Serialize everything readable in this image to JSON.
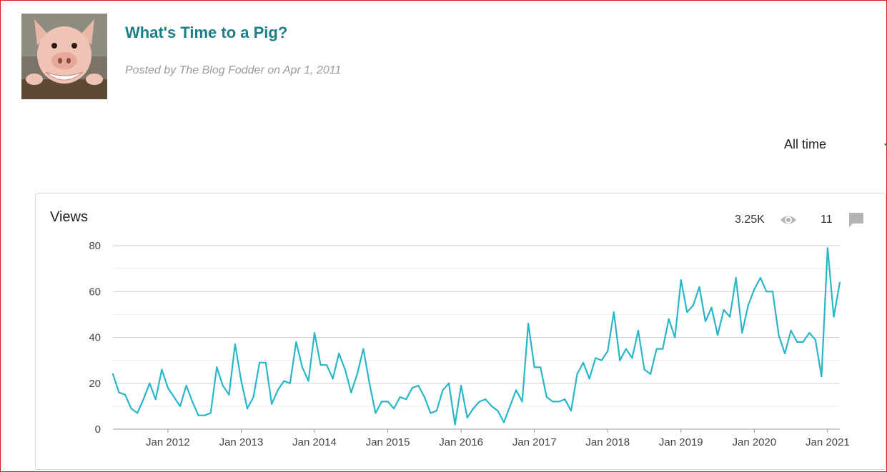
{
  "post": {
    "title": "What's Time to a Pig?",
    "meta": "Posted by The Blog Fodder on Apr 1, 2011"
  },
  "range": {
    "selected": "All time"
  },
  "card": {
    "title": "Views",
    "views_total": "3.25K",
    "comments_total": "11"
  },
  "colors": {
    "line": "#29b6c8",
    "title": "#1a7f87",
    "grid": "#dcdcdc"
  },
  "icons": {
    "views": "eye-icon",
    "comments": "comment-icon"
  },
  "chart_data": {
    "type": "line",
    "title": "Views",
    "xlabel": "",
    "ylabel": "",
    "ylim": [
      0,
      80
    ],
    "yticks": [
      0,
      20,
      40,
      60,
      80
    ],
    "start": "2011-04",
    "xtick_labels": [
      "Jan 2012",
      "Jan 2013",
      "Jan 2014",
      "Jan 2015",
      "Jan 2016",
      "Jan 2017",
      "Jan 2018",
      "Jan 2019",
      "Jan 2020",
      "Jan 2021"
    ],
    "xtick_index": [
      9,
      21,
      33,
      45,
      57,
      69,
      81,
      93,
      105,
      117
    ],
    "series": [
      {
        "name": "Views",
        "values": [
          24,
          16,
          15,
          9,
          7,
          13,
          20,
          13,
          26,
          18,
          14,
          10,
          19,
          12,
          6,
          6,
          7,
          27,
          19,
          15,
          37,
          21,
          9,
          14,
          29,
          29,
          11,
          17,
          21,
          20,
          38,
          27,
          21,
          42,
          28,
          28,
          22,
          33,
          26,
          16,
          24,
          35,
          20,
          7,
          12,
          12,
          9,
          14,
          13,
          18,
          19,
          14,
          7,
          8,
          17,
          20,
          2,
          19,
          5,
          9,
          12,
          13,
          10,
          8,
          3,
          10,
          17,
          12,
          46,
          27,
          27,
          14,
          12,
          12,
          13,
          8,
          24,
          29,
          22,
          31,
          30,
          34,
          51,
          30,
          35,
          31,
          43,
          26,
          24,
          35,
          35,
          48,
          40,
          65,
          51,
          54,
          62,
          47,
          53,
          41,
          52,
          49,
          66,
          42,
          54,
          61,
          66,
          60,
          60,
          41,
          33,
          43,
          38,
          38,
          42,
          39,
          23,
          79,
          49,
          64
        ]
      }
    ]
  }
}
